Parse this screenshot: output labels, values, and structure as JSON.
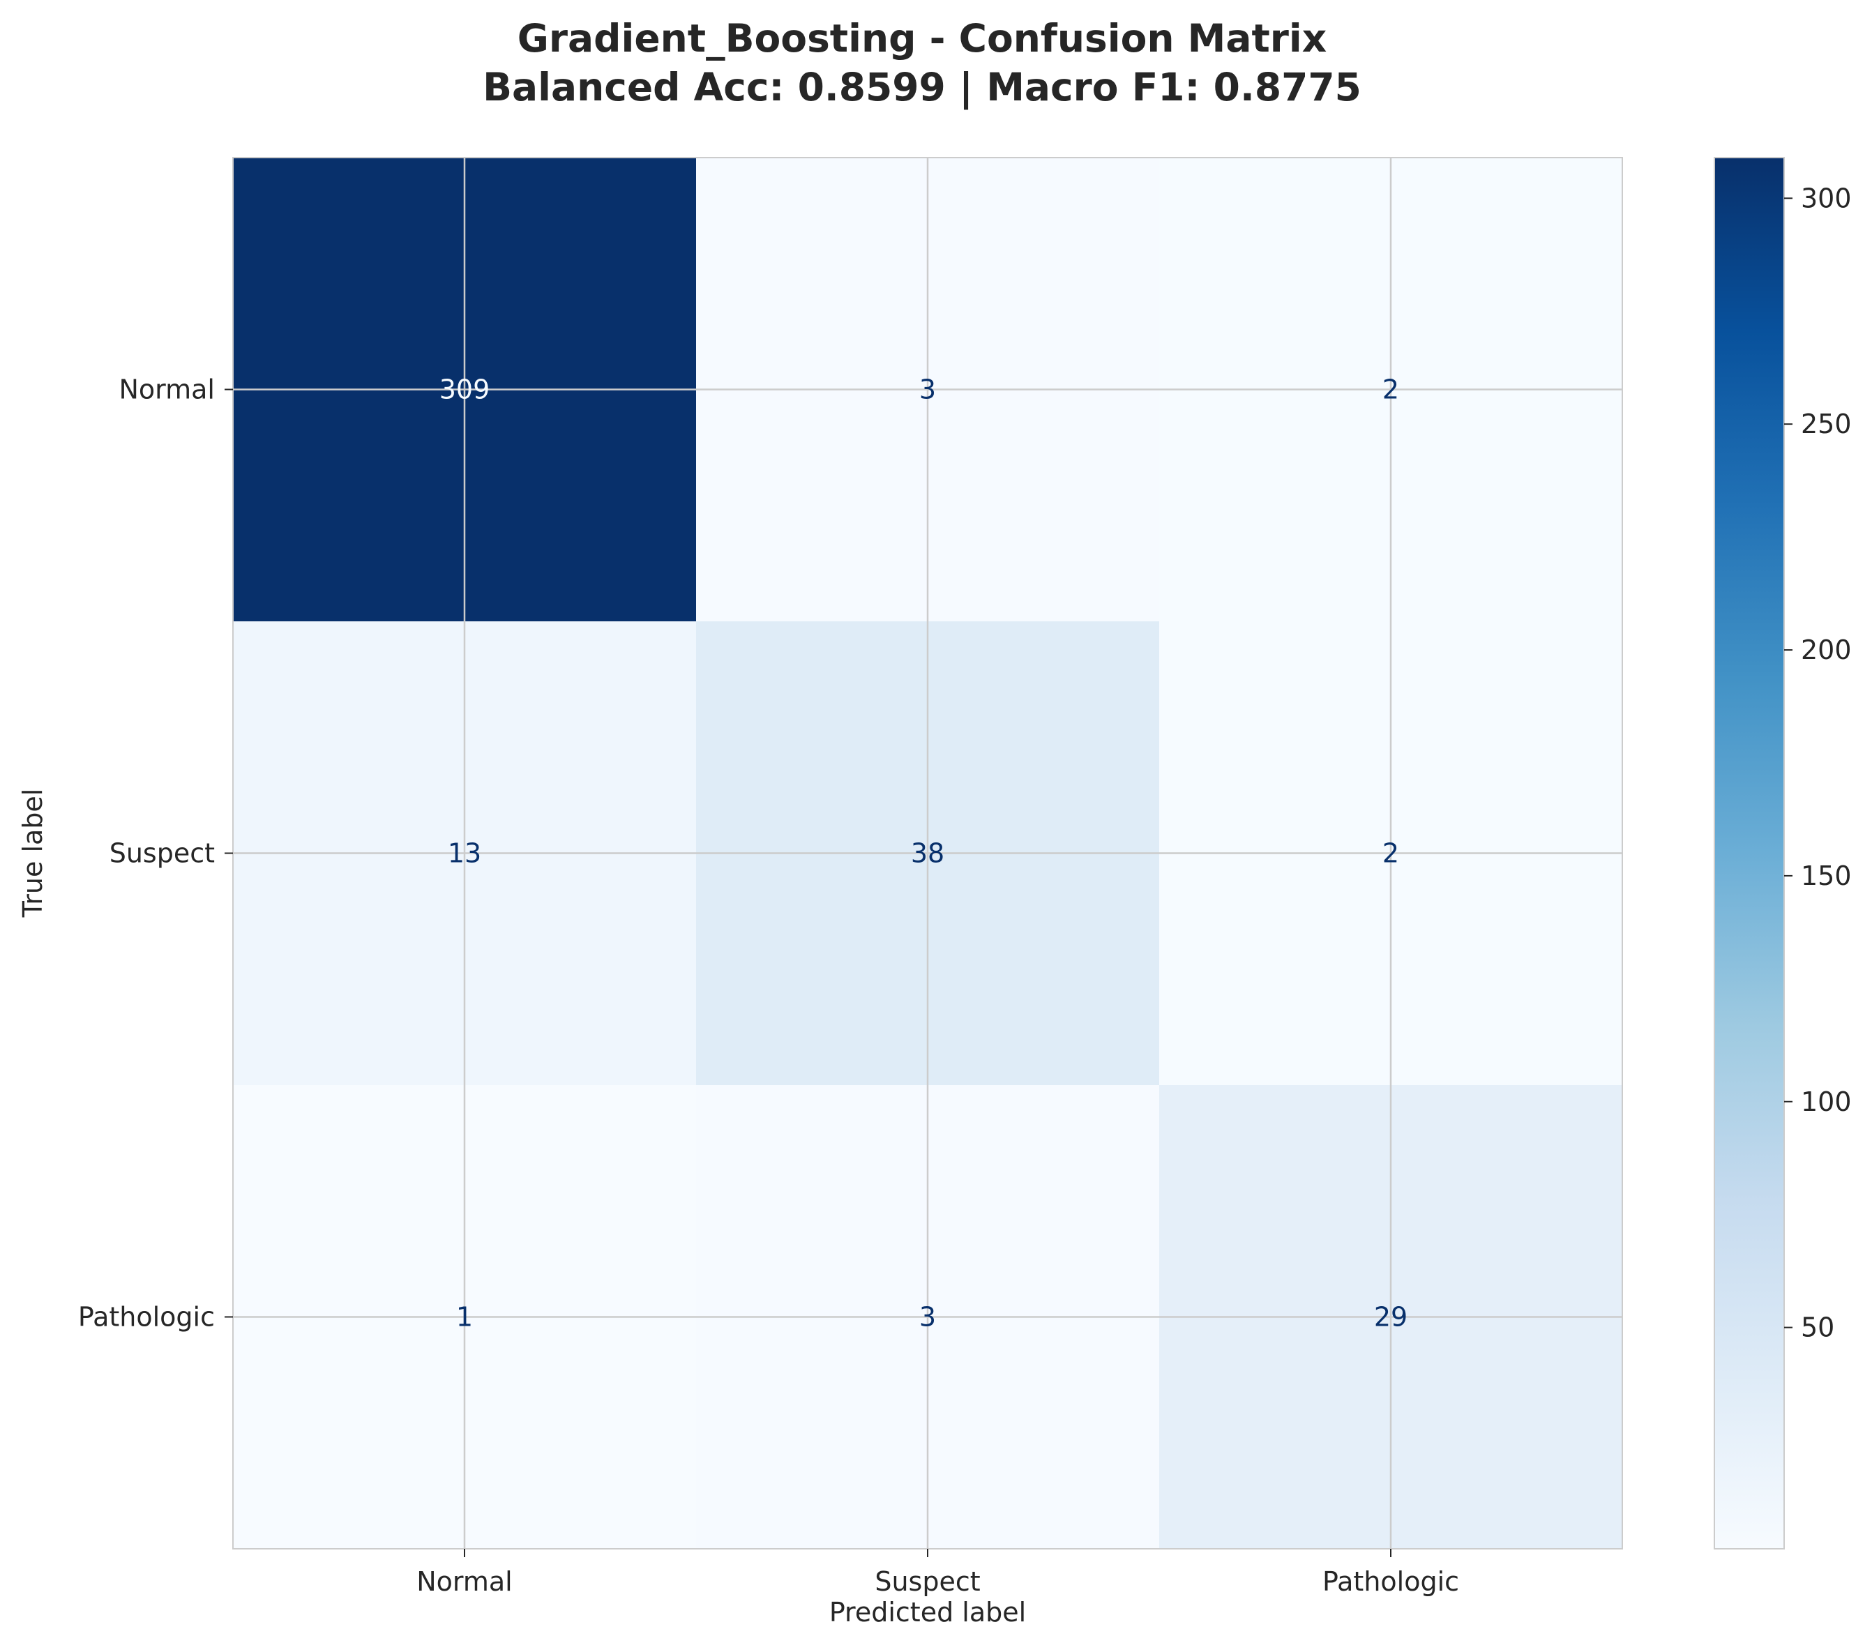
{
  "chart_data": {
    "type": "heatmap",
    "title": "Gradient_Boosting - Confusion Matrix",
    "subtitle": "Balanced Acc: 0.8599 | Macro F1: 0.8775",
    "xlabel": "Predicted label",
    "ylabel": "True label",
    "x_categories": [
      "Normal",
      "Suspect",
      "Pathologic"
    ],
    "y_categories": [
      "Normal",
      "Suspect",
      "Pathologic"
    ],
    "values": [
      [
        309,
        3,
        2
      ],
      [
        13,
        38,
        2
      ],
      [
        1,
        3,
        29
      ]
    ],
    "colormap": "Blues",
    "colorbar": {
      "range": [
        1,
        309
      ],
      "ticks": [
        50,
        100,
        150,
        200,
        250,
        300
      ]
    },
    "grid": true
  },
  "colors": {
    "colormap_stops": [
      "#f7fbff",
      "#deebf7",
      "#c6dbef",
      "#9ecae1",
      "#6baed6",
      "#4292c6",
      "#2171b5",
      "#08519c",
      "#08306b"
    ],
    "text_on_dark": "#f7fbff",
    "text_on_light": "#08306b",
    "grid": "#cccccc",
    "frame": "#cccccc"
  }
}
